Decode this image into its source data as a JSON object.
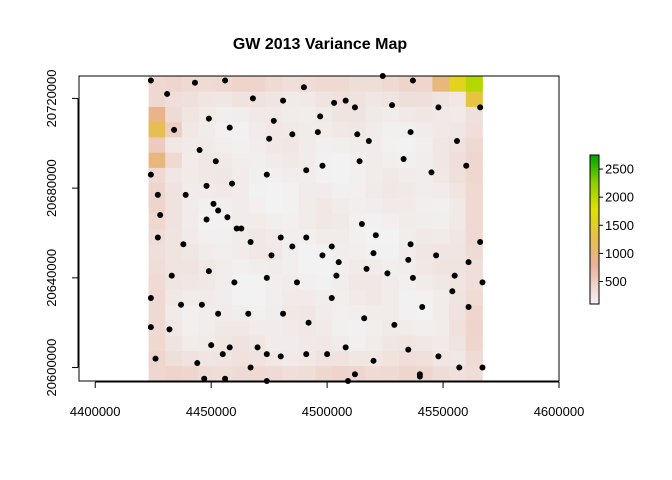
{
  "chart_data": {
    "type": "heatmap",
    "title": "GW 2013 Variance Map",
    "xlabel": "",
    "ylabel": "",
    "xlim": [
      4393000,
      4600000
    ],
    "ylim": [
      20594000,
      20730000
    ],
    "x_ticks": [
      4400000,
      4450000,
      4500000,
      4550000,
      4600000
    ],
    "y_ticks": [
      20600000,
      20640000,
      20680000,
      20720000
    ],
    "x_tick_labels": [
      "4400000",
      "4450000",
      "4500000",
      "4550000",
      "4600000"
    ],
    "y_tick_labels": [
      "20600000",
      "20640000",
      "20680000",
      "20720000"
    ],
    "grid": {
      "x_min": 4423000,
      "x_max": 4567000,
      "y_min": 20594000,
      "y_max": 20730000,
      "nx": 20,
      "ny": 20
    },
    "hotspots": [
      {
        "x": 4566000,
        "y": 20729000,
        "value": 2750
      },
      {
        "x": 4558000,
        "y": 20729000,
        "value": 2000
      },
      {
        "x": 4566000,
        "y": 20722000,
        "value": 1800
      },
      {
        "x": 4550000,
        "y": 20729000,
        "value": 1200
      },
      {
        "x": 4427000,
        "y": 20705000,
        "value": 1300
      },
      {
        "x": 4427000,
        "y": 20694000,
        "value": 1050
      },
      {
        "x": 4427000,
        "y": 20712000,
        "value": 950
      }
    ],
    "colorbar": {
      "min": 100,
      "max": 2750,
      "ticks": [
        500,
        1000,
        1500,
        2000,
        2500
      ],
      "tick_labels": [
        "500",
        "1000",
        "1500",
        "2000",
        "2500"
      ],
      "stops": [
        {
          "value": 100,
          "color": "#f2f2f2"
        },
        {
          "value": 350,
          "color": "#efdcd6"
        },
        {
          "value": 800,
          "color": "#eab29c"
        },
        {
          "value": 1300,
          "color": "#e6c04a"
        },
        {
          "value": 1800,
          "color": "#e0e000"
        },
        {
          "value": 2250,
          "color": "#8ed000"
        },
        {
          "value": 2750,
          "color": "#00a600"
        }
      ]
    },
    "points": [
      [
        4424000,
        20728000
      ],
      [
        4431000,
        20722000
      ],
      [
        4443000,
        20727000
      ],
      [
        4456000,
        20728000
      ],
      [
        4468000,
        20720000
      ],
      [
        4481000,
        20719000
      ],
      [
        4490000,
        20725000
      ],
      [
        4503000,
        20718000
      ],
      [
        4508000,
        20719000
      ],
      [
        4524000,
        20730000
      ],
      [
        4537000,
        20728000
      ],
      [
        4434000,
        20706000
      ],
      [
        4449000,
        20711000
      ],
      [
        4458000,
        20707000
      ],
      [
        4477000,
        20710000
      ],
      [
        4497000,
        20712000
      ],
      [
        4512000,
        20716000
      ],
      [
        4528000,
        20717000
      ],
      [
        4548000,
        20716000
      ],
      [
        4566000,
        20716000
      ],
      [
        4445000,
        20697000
      ],
      [
        4452000,
        20692000
      ],
      [
        4475000,
        20702000
      ],
      [
        4485000,
        20704000
      ],
      [
        4496000,
        20705000
      ],
      [
        4513000,
        20704000
      ],
      [
        4518000,
        20701000
      ],
      [
        4536000,
        20705000
      ],
      [
        4556000,
        20701000
      ],
      [
        4424000,
        20686000
      ],
      [
        4427000,
        20677000
      ],
      [
        4439000,
        20677000
      ],
      [
        4448000,
        20681000
      ],
      [
        4459000,
        20682000
      ],
      [
        4474000,
        20686000
      ],
      [
        4491000,
        20688000
      ],
      [
        4498000,
        20690000
      ],
      [
        4514000,
        20692000
      ],
      [
        4533000,
        20693000
      ],
      [
        4545000,
        20687000
      ],
      [
        4560000,
        20690000
      ],
      [
        4428000,
        20668000
      ],
      [
        4448000,
        20666000
      ],
      [
        4451000,
        20673000
      ],
      [
        4453000,
        20670000
      ],
      [
        4457000,
        20667000
      ],
      [
        4463000,
        20662000
      ],
      [
        4480000,
        20658000
      ],
      [
        4491000,
        20658000
      ],
      [
        4502000,
        20654000
      ],
      [
        4515000,
        20664000
      ],
      [
        4521000,
        20659000
      ],
      [
        4536000,
        20655000
      ],
      [
        4427000,
        20658000
      ],
      [
        4438000,
        20655000
      ],
      [
        4461000,
        20662000
      ],
      [
        4467000,
        20656000
      ],
      [
        4476000,
        20650000
      ],
      [
        4485000,
        20654000
      ],
      [
        4498000,
        20650000
      ],
      [
        4505000,
        20647000
      ],
      [
        4520000,
        20651000
      ],
      [
        4535000,
        20648000
      ],
      [
        4547000,
        20650000
      ],
      [
        4561000,
        20647000
      ],
      [
        4566000,
        20656000
      ],
      [
        4433000,
        20641000
      ],
      [
        4449000,
        20643000
      ],
      [
        4460000,
        20638000
      ],
      [
        4474000,
        20640000
      ],
      [
        4487000,
        20638000
      ],
      [
        4504000,
        20641000
      ],
      [
        4517000,
        20644000
      ],
      [
        4526000,
        20642000
      ],
      [
        4537000,
        20640000
      ],
      [
        4555000,
        20641000
      ],
      [
        4567000,
        20638000
      ],
      [
        4424000,
        20631000
      ],
      [
        4437000,
        20628000
      ],
      [
        4446000,
        20628000
      ],
      [
        4453000,
        20624000
      ],
      [
        4466000,
        20624000
      ],
      [
        4481000,
        20624000
      ],
      [
        4492000,
        20620000
      ],
      [
        4502000,
        20631000
      ],
      [
        4516000,
        20622000
      ],
      [
        4529000,
        20619000
      ],
      [
        4541000,
        20627000
      ],
      [
        4554000,
        20634000
      ],
      [
        4561000,
        20627000
      ],
      [
        4424000,
        20618000
      ],
      [
        4432000,
        20617000
      ],
      [
        4450000,
        20610000
      ],
      [
        4458000,
        20609000
      ],
      [
        4470000,
        20609000
      ],
      [
        4480000,
        20605000
      ],
      [
        4491000,
        20606000
      ],
      [
        4508000,
        20609000
      ],
      [
        4520000,
        20603000
      ],
      [
        4535000,
        20608000
      ],
      [
        4548000,
        20605000
      ],
      [
        4426000,
        20604000
      ],
      [
        4444000,
        20602000
      ],
      [
        4455000,
        20606000
      ],
      [
        4467000,
        20600000
      ],
      [
        4474000,
        20606000
      ],
      [
        4500000,
        20606000
      ],
      [
        4512000,
        20597000
      ],
      [
        4540000,
        20597000
      ],
      [
        4557000,
        20600000
      ],
      [
        4567000,
        20600000
      ],
      [
        4447000,
        20595000
      ],
      [
        4456000,
        20595000
      ],
      [
        4474000,
        20594000
      ],
      [
        4509000,
        20594000
      ],
      [
        4540000,
        20596000
      ]
    ]
  }
}
